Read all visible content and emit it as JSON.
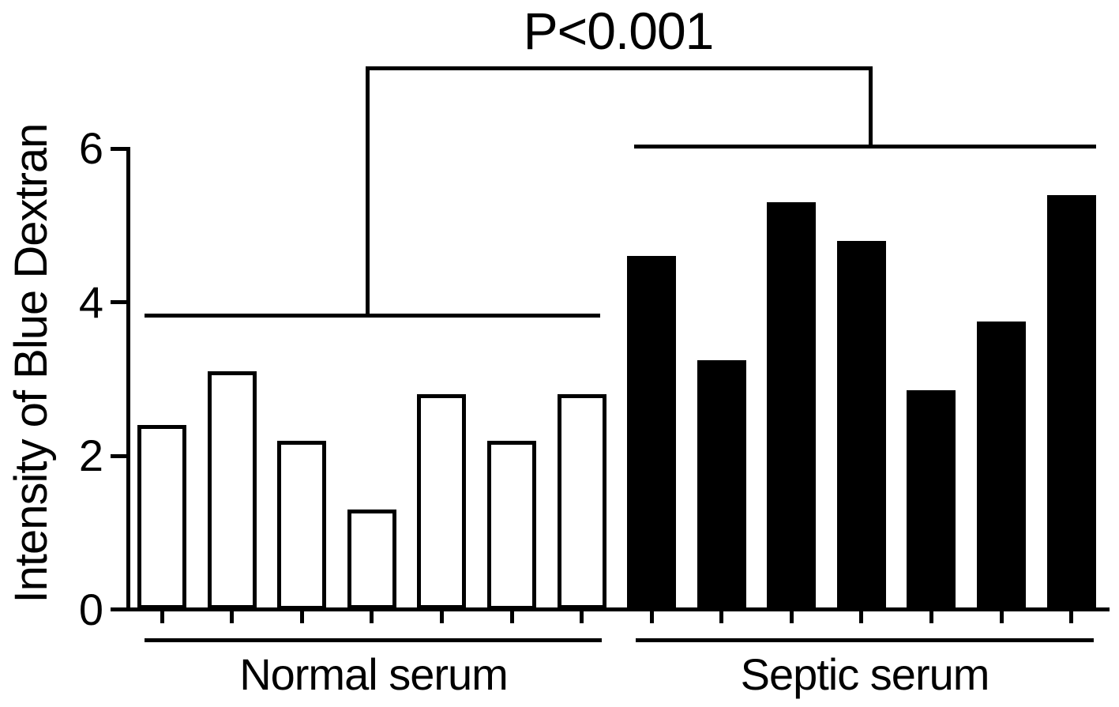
{
  "figure": {
    "background": "#ffffff",
    "foreground": "#000000"
  },
  "chart_data": {
    "type": "bar",
    "title": "",
    "xlabel": "",
    "ylabel": "Intensity of Blue Dextran",
    "ylim": [
      0,
      6
    ],
    "yticks": [
      0,
      2,
      4,
      6
    ],
    "grid": false,
    "legend_position": "none",
    "bar_style": "outlined individual-sample bars, one bar per sample",
    "series": [
      {
        "name": "Normal serum",
        "fill": "#ffffff",
        "stroke": "#000000",
        "values": [
          2.4,
          3.1,
          2.2,
          1.3,
          2.8,
          2.2,
          2.8
        ]
      },
      {
        "name": "Septic serum",
        "fill": "#000000",
        "stroke": "#000000",
        "values": [
          4.6,
          3.25,
          5.3,
          4.8,
          2.85,
          3.75,
          5.4
        ]
      }
    ],
    "annotation": {
      "text": "P<0.001",
      "comparison": [
        "Normal serum",
        "Septic serum"
      ],
      "group_line_levels": [
        3.83,
        6.03
      ]
    }
  }
}
